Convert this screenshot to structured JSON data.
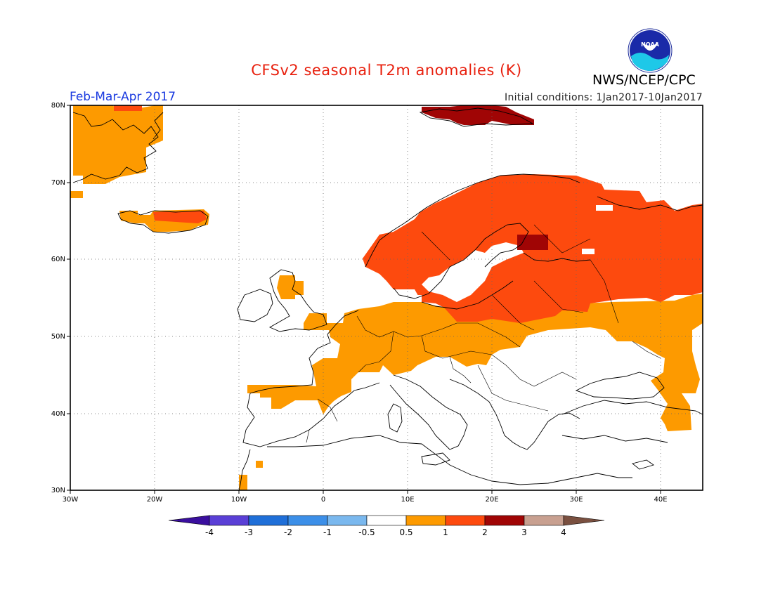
{
  "title": "CFSv2 seasonal T2m anomalies (K)",
  "agency": "NWS/NCEP/CPC",
  "period": "Feb-Mar-Apr 2017",
  "initial_conditions": "Initial conditions: 1Jan2017-10Jan2017",
  "logo_text": "NOAA",
  "colors": {
    "title": "#e8200e",
    "period": "#1a3ae0"
  },
  "map": {
    "lat_labels": [
      "80N",
      "70N",
      "60N",
      "50N",
      "40N",
      "30N"
    ],
    "lon_labels": [
      "30W",
      "20W",
      "10W",
      "0",
      "10E",
      "20E",
      "30E",
      "40E"
    ]
  },
  "colorbar": {
    "labels": [
      "-4",
      "-3",
      "-2",
      "-1",
      "-0.5",
      "0.5",
      "1",
      "2",
      "3",
      "4"
    ],
    "colors": [
      "#3a0f9e",
      "#5a3fd6",
      "#1f6fd8",
      "#3c8fe8",
      "#7ab8ee",
      "#ffffff",
      "#fd9a00",
      "#fd4a0e",
      "#a00505",
      "#c8a090",
      "#7a5040"
    ]
  }
}
